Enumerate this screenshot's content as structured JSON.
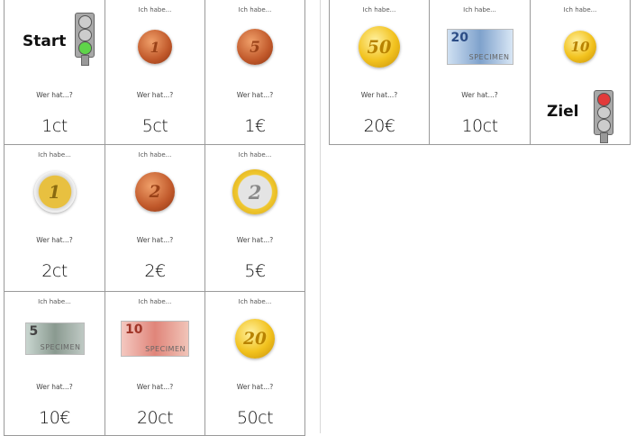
{
  "labels": {
    "have": "Ich habe...",
    "who": "Wer hat...?"
  },
  "colors": {
    "green_light": "#5fd44a",
    "red_light": "#e23a3a",
    "grid_line": "#9a9a9a"
  },
  "left_cards": [
    {
      "special": "Start",
      "light": "green",
      "value": "1ct"
    },
    {
      "image": {
        "kind": "coin",
        "style": "copper",
        "label": "1",
        "denomination": "1ct"
      },
      "value": "5ct"
    },
    {
      "image": {
        "kind": "coin",
        "style": "copper",
        "label": "5",
        "denomination": "5ct"
      },
      "value": "1€"
    },
    {
      "image": {
        "kind": "coin",
        "style": "bi-gold",
        "label": "1",
        "denomination": "1€"
      },
      "value": "2ct"
    },
    {
      "image": {
        "kind": "coin",
        "style": "copper",
        "label": "2",
        "denomination": "2ct"
      },
      "value": "2€"
    },
    {
      "image": {
        "kind": "coin",
        "style": "bi-gold-ring",
        "label": "2",
        "denomination": "2€"
      },
      "value": "5€"
    },
    {
      "image": {
        "kind": "note",
        "style": "n5",
        "label": "5",
        "watermark": "SPECIMEN",
        "denomination": "5€"
      },
      "value": "10€"
    },
    {
      "image": {
        "kind": "note",
        "style": "n10",
        "label": "10",
        "watermark": "SPECIMEN",
        "denomination": "10€"
      },
      "value": "20ct"
    },
    {
      "image": {
        "kind": "coin",
        "style": "gold",
        "label": "20",
        "denomination": "20ct"
      },
      "value": "50ct"
    }
  ],
  "right_cards": [
    {
      "image": {
        "kind": "coin",
        "style": "gold",
        "label": "50",
        "denomination": "50ct"
      },
      "value": "20€"
    },
    {
      "image": {
        "kind": "note",
        "style": "n20",
        "label": "20",
        "watermark": "SPECIMEN",
        "denomination": "20€"
      },
      "value": "10ct"
    },
    {
      "image": {
        "kind": "coin",
        "style": "gold",
        "label": "10",
        "denomination": "10ct"
      },
      "special": "Ziel",
      "light": "red"
    }
  ]
}
